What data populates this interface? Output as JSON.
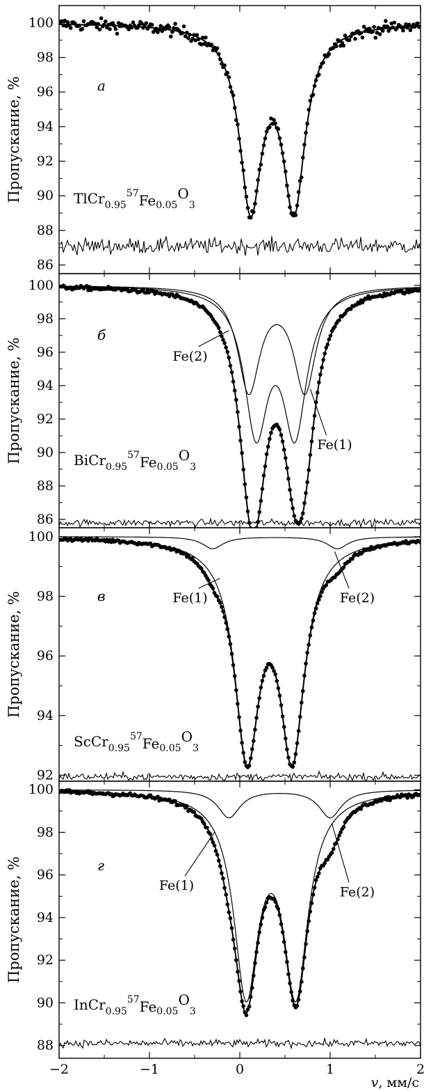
{
  "figure": {
    "x_axis_label_var": "v",
    "x_axis_label_unit": ", мм/с",
    "xlim": [
      -2,
      2
    ],
    "x_ticks": [
      -2,
      -1,
      0,
      1,
      2
    ],
    "x_tick_labels": [
      "−2",
      "−1",
      "0",
      "1",
      "2"
    ]
  },
  "chart_data": [
    {
      "type": "scatter",
      "panel": "а",
      "sample": {
        "base": "TlCr",
        "sub1": "0.95",
        "sup": "57",
        "mid": "Fe",
        "sub2": "0.05",
        "end": "O",
        "sub3": "3"
      },
      "ylabel": "Пропускание, %",
      "ylim": [
        85.5,
        101
      ],
      "y_ticks": [
        86,
        88,
        90,
        92,
        94,
        96,
        98,
        100
      ],
      "residual_baseline": 87.1,
      "residual_amplitude": 0.45,
      "noise": 0.35,
      "fit": {
        "background": 100,
        "peaks": [
          {
            "x": 0.12,
            "depth": 10.3,
            "width": 0.3
          },
          {
            "x": 0.6,
            "depth": 10.3,
            "width": 0.3
          }
        ]
      },
      "components": [],
      "annotations": []
    },
    {
      "type": "scatter",
      "panel": "б",
      "sample": {
        "base": "BiCr",
        "sub1": "0.95",
        "sup": "57",
        "mid": "Fe",
        "sub2": "0.05",
        "end": "O",
        "sub3": "3"
      },
      "ylabel": "Пропускание, %",
      "ylim": [
        85.5,
        100.7
      ],
      "y_ticks": [
        86,
        88,
        90,
        92,
        94,
        96,
        98,
        100
      ],
      "residual_baseline": 85.8,
      "residual_amplitude": 0.2,
      "noise": 0.12,
      "fit": {
        "background": 100,
        "peaks": []
      },
      "components": [
        {
          "name": "Fe(1)",
          "peaks": [
            {
              "x": 0.18,
              "depth": 8.4,
              "width": 0.32
            },
            {
              "x": 0.61,
              "depth": 8.4,
              "width": 0.32
            }
          ]
        },
        {
          "name": "Fe(2)",
          "peaks": [
            {
              "x": 0.1,
              "depth": 6.2,
              "width": 0.3
            },
            {
              "x": 0.72,
              "depth": 6.2,
              "width": 0.3
            }
          ]
        }
      ],
      "annotations": [
        {
          "text": "Fe(2)",
          "at": [
            -0.55,
            95.5
          ],
          "to": [
            -0.12,
            97.3
          ]
        },
        {
          "text": "Fe(1)",
          "at": [
            1.05,
            90.2
          ],
          "to": [
            0.78,
            93.8
          ]
        }
      ]
    },
    {
      "type": "scatter",
      "panel": "в",
      "sample": {
        "base": "ScCr",
        "sub1": "0.95",
        "sup": "57",
        "mid": "Fe",
        "sub2": "0.05",
        "end": "O",
        "sub3": "3"
      },
      "ylabel": "Пропускание, %",
      "ylim": [
        91.8,
        100.3
      ],
      "y_ticks": [
        92,
        94,
        96,
        98,
        100
      ],
      "residual_baseline": 91.95,
      "residual_amplitude": 0.12,
      "noise": 0.06,
      "fit": {
        "background": 100,
        "peaks": []
      },
      "components": [
        {
          "name": "Fe(1)",
          "peaks": [
            {
              "x": 0.08,
              "depth": 7.0,
              "width": 0.33
            },
            {
              "x": 0.58,
              "depth": 7.0,
              "width": 0.33
            }
          ]
        },
        {
          "name": "Fe(2)",
          "peaks": [
            {
              "x": -0.3,
              "depth": 0.4,
              "width": 0.28
            },
            {
              "x": 1.08,
              "depth": 0.4,
              "width": 0.28
            }
          ]
        }
      ],
      "annotations": [
        {
          "text": "Fe(1)",
          "at": [
            -0.55,
            97.8
          ],
          "to": [
            -0.22,
            98.6
          ]
        },
        {
          "text": "Fe(2)",
          "at": [
            1.3,
            97.8
          ],
          "to": [
            1.05,
            99.5
          ]
        }
      ]
    },
    {
      "type": "scatter",
      "panel": "г",
      "sample": {
        "base": "InCr",
        "sub1": "0.95",
        "sup": "57",
        "mid": "Fe",
        "sub2": "0.05",
        "end": "O",
        "sub3": "3"
      },
      "ylabel": "Пропускание, %",
      "ylim": [
        87.4,
        100.4
      ],
      "y_ticks": [
        88,
        90,
        92,
        94,
        96,
        98,
        100
      ],
      "residual_baseline": 88.1,
      "residual_amplitude": 0.18,
      "noise": 0.1,
      "fit": {
        "background": 100,
        "peaks": []
      },
      "components": [
        {
          "name": "Fe(1)",
          "peaks": [
            {
              "x": 0.07,
              "depth": 9.2,
              "width": 0.33
            },
            {
              "x": 0.62,
              "depth": 9.2,
              "width": 0.33
            }
          ]
        },
        {
          "name": "Fe(2)",
          "peaks": [
            {
              "x": -0.12,
              "depth": 1.3,
              "width": 0.3
            },
            {
              "x": 1.0,
              "depth": 1.3,
              "width": 0.3
            }
          ]
        }
      ],
      "annotations": [
        {
          "text": "Fe(1)",
          "at": [
            -0.7,
            95.3
          ],
          "to": [
            -0.28,
            98.0
          ]
        },
        {
          "text": "Fe(2)",
          "at": [
            1.3,
            95.0
          ],
          "to": [
            1.02,
            98.4
          ]
        }
      ]
    }
  ]
}
